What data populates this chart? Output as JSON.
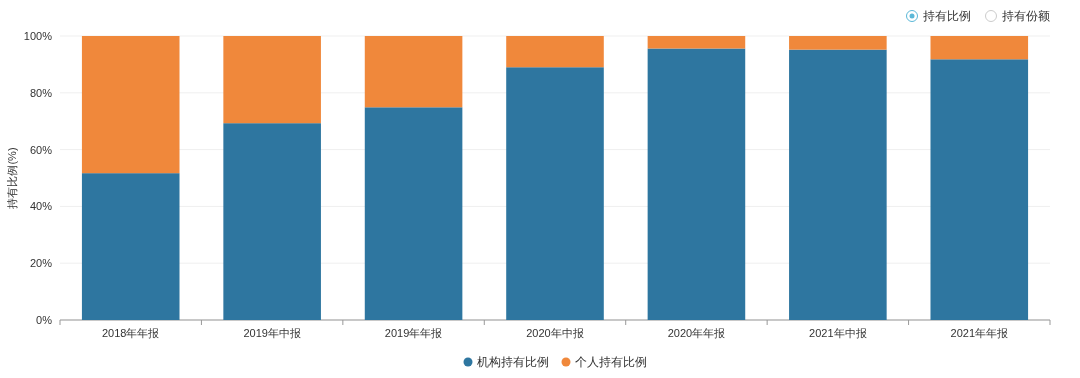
{
  "chart_data": {
    "type": "bar",
    "stacked": true,
    "ylabel": "持有比例(%)",
    "categories": [
      "2018年年报",
      "2019年中报",
      "2019年年报",
      "2020年中报",
      "2020年年报",
      "2021年中报",
      "2021年年报"
    ],
    "series": [
      {
        "name": "机构持有比例",
        "color": "#2e76a0",
        "values": [
          51.7,
          69.3,
          74.9,
          89.0,
          95.6,
          95.2,
          91.8
        ]
      },
      {
        "name": "个人持有比例",
        "color": "#f0883b",
        "values": [
          48.3,
          30.7,
          25.1,
          11.0,
          4.4,
          4.8,
          8.2
        ]
      }
    ],
    "ylim": [
      0,
      100
    ],
    "yticks": [
      {
        "value": 0,
        "label": "0%"
      },
      {
        "value": 20,
        "label": "20%"
      },
      {
        "value": 40,
        "label": "40%"
      },
      {
        "value": 60,
        "label": "60%"
      },
      {
        "value": 80,
        "label": "80%"
      },
      {
        "value": 100,
        "label": "100%"
      }
    ],
    "grid": "y",
    "legend": "bottom",
    "annotations": [
      "持有比例",
      "持有份额"
    ]
  }
}
